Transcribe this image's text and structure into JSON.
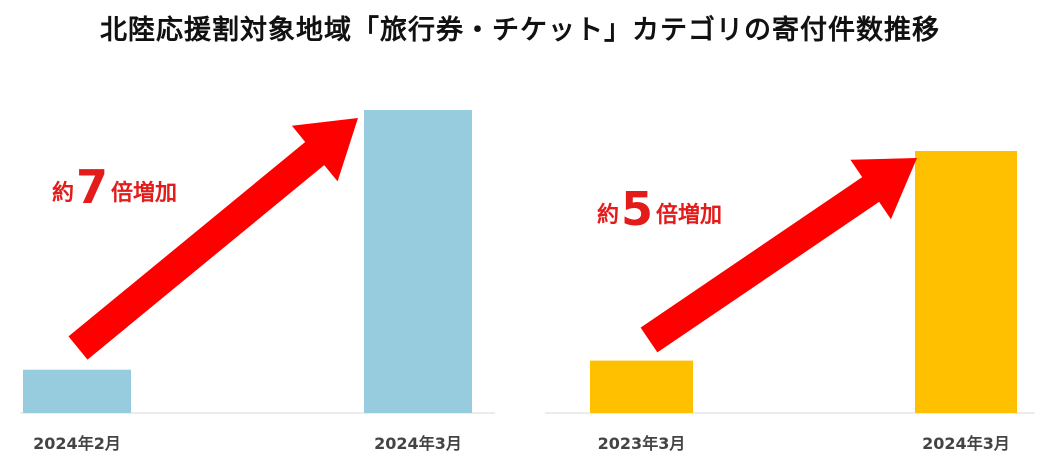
{
  "title": "北陸応援割対象地域「旅行券・チケット」カテゴリの寄付件数推移",
  "chart_data": [
    {
      "type": "bar",
      "categories": [
        "2024年2月",
        "2024年3月"
      ],
      "values": [
        1,
        7
      ],
      "ylim": [
        0,
        7
      ],
      "grid": false,
      "color": "#96ccde",
      "annotation": {
        "prefix": "約",
        "number": "7",
        "suffix": "倍増加"
      },
      "arrow_color": "#ff0000"
    },
    {
      "type": "bar",
      "categories": [
        "2023年3月",
        "2024年3月"
      ],
      "values": [
        1,
        5
      ],
      "ylim": [
        0,
        5.6
      ],
      "grid": false,
      "color": "#ffc000",
      "annotation": {
        "prefix": "約",
        "number": "5",
        "suffix": "倍増加"
      },
      "arrow_color": "#ff0000"
    }
  ]
}
